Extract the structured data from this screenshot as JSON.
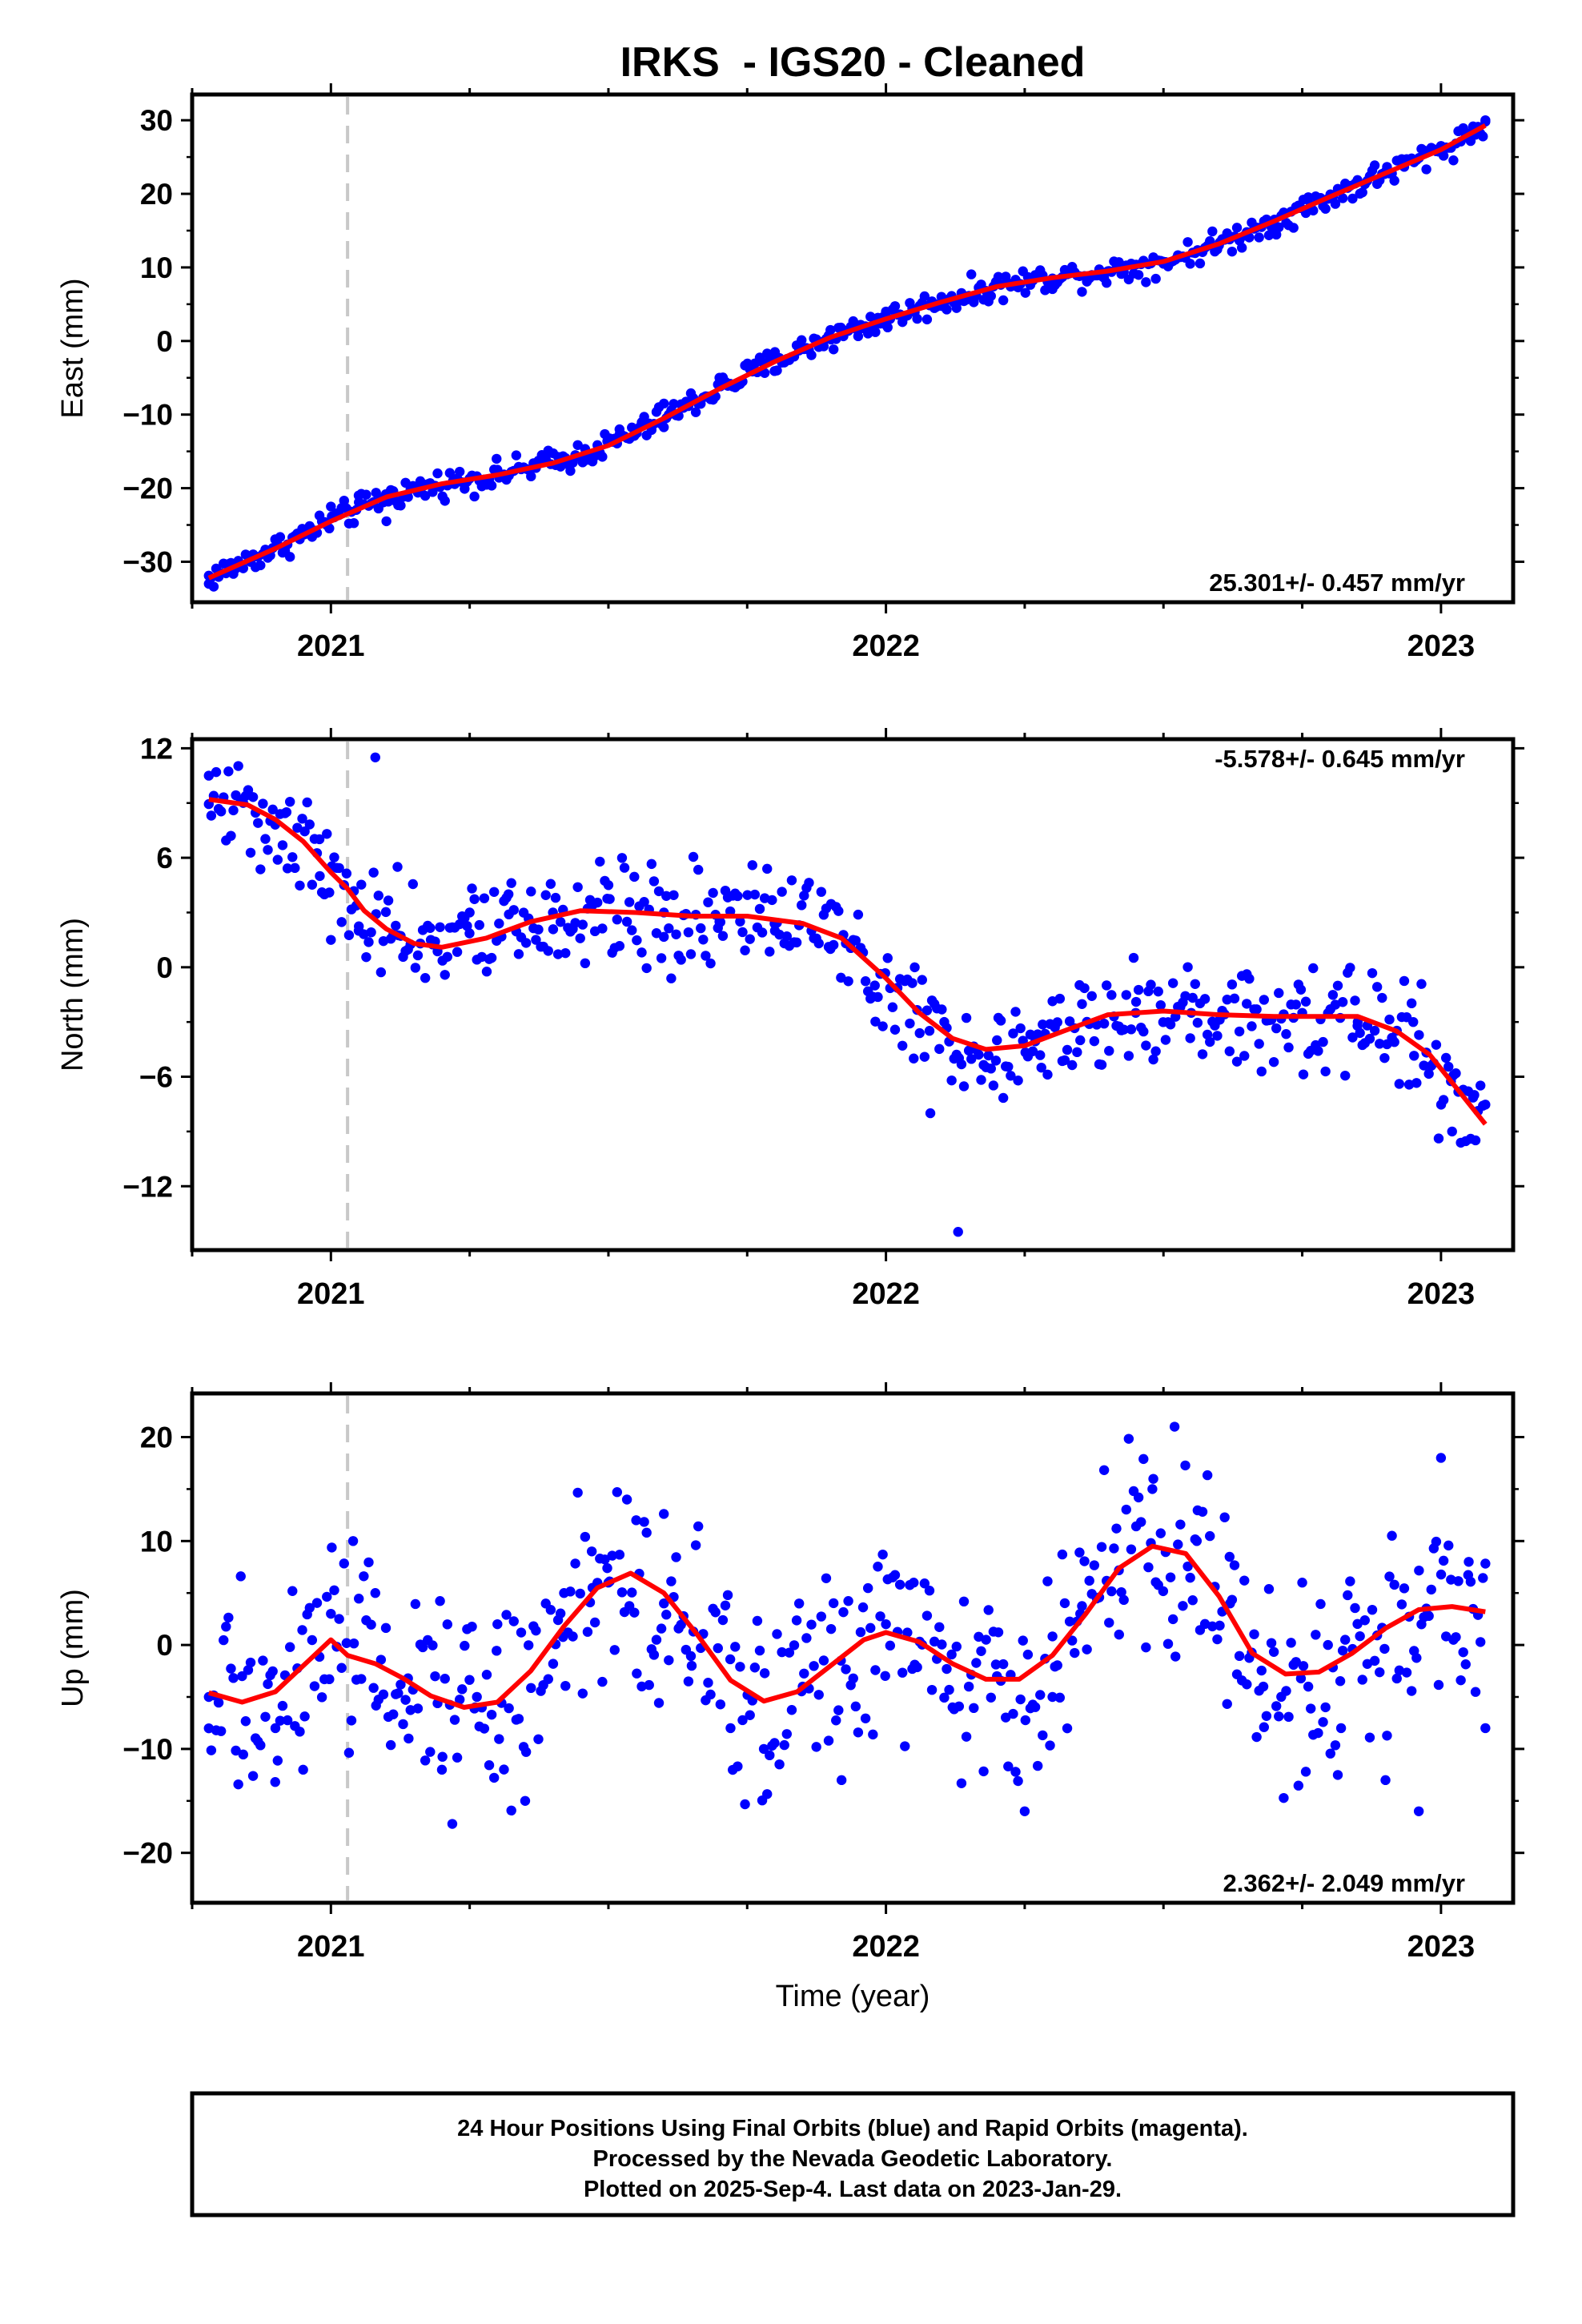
{
  "figure": {
    "title": "IRKS  - IGS20 - Cleaned",
    "xlabel": "Time (year)",
    "footer": [
      "24 Hour Positions Using Final Orbits (blue) and Rapid Orbits (magenta).",
      "Processed by the Nevada Geodetic Laboratory.",
      "Plotted on 2025-Sep-4. Last data on 2023-Jan-29."
    ]
  },
  "colors": {
    "final_orbits": "#0000ff",
    "fit": "#ff0000",
    "discontinuity": "#c8c8c8",
    "frame": "#000000"
  },
  "chart_data": [
    {
      "type": "scatter",
      "component": "east",
      "ylabel": "East (mm)",
      "rate": "25.301+/- 0.457 mm/yr",
      "rate_position": "bottom-right",
      "xlim": [
        2020.75,
        2023.13
      ],
      "ylim": [
        -35.5,
        33.5
      ],
      "yticks": [
        -30,
        -20,
        -10,
        0,
        10,
        20,
        30
      ],
      "yticklabels": [
        "−30",
        "−20",
        "−10",
        "0",
        "10",
        "20",
        "30"
      ],
      "xticks": [
        2021,
        2022,
        2023
      ],
      "xticklabels": [
        "2021",
        "2022",
        "2023"
      ],
      "discontinuity": 2021.03,
      "series": [
        {
          "role": "points",
          "x": [
            2020.78,
            2020.86,
            2020.94,
            2021.0,
            2021.05,
            2021.1,
            2021.16,
            2021.22,
            2021.3,
            2021.38,
            2021.46,
            2021.52,
            2021.6,
            2021.7,
            2021.8,
            2021.9,
            2022.0,
            2022.1,
            2022.2,
            2022.3,
            2022.4,
            2022.5,
            2022.6,
            2022.7,
            2022.8,
            2022.9,
            2023.0,
            2023.08
          ],
          "y": [
            -33,
            -29,
            -26.5,
            -22.5,
            -21,
            -24.5,
            -19.5,
            -19,
            -17.5,
            -15.5,
            -15.5,
            -12,
            -8.5,
            -5,
            -1.5,
            1.5,
            4,
            6,
            8,
            8.5,
            9.5,
            10.5,
            13,
            16.5,
            19.5,
            23,
            26.5,
            30
          ]
        },
        {
          "role": "fit",
          "x": [
            2020.78,
            2020.9,
            2021.0,
            2021.1,
            2021.2,
            2021.3,
            2021.4,
            2021.5,
            2021.6,
            2021.7,
            2021.8,
            2021.9,
            2022.0,
            2022.1,
            2022.2,
            2022.3,
            2022.4,
            2022.5,
            2022.6,
            2022.7,
            2022.8,
            2022.9,
            2023.0,
            2023.08
          ],
          "y": [
            -32.2,
            -28.2,
            -24.5,
            -21.2,
            -19.4,
            -18.2,
            -16.6,
            -14.2,
            -10.5,
            -6.5,
            -2.8,
            0.5,
            3,
            5.3,
            7.4,
            8.6,
            9.5,
            10.8,
            13.2,
            16.3,
            19.6,
            22.8,
            26,
            29.3
          ]
        }
      ]
    },
    {
      "type": "scatter",
      "component": "north",
      "ylabel": "North (mm)",
      "rate": "-5.578+/- 0.645 mm/yr",
      "rate_position": "top-right",
      "xlim": [
        2020.75,
        2023.13
      ],
      "ylim": [
        -15.5,
        12.5
      ],
      "yticks": [
        -12,
        -6,
        0,
        6,
        12
      ],
      "yticklabels": [
        "−12",
        "−6",
        "0",
        "6",
        "12"
      ],
      "xticks": [
        2021,
        2022,
        2023
      ],
      "xticklabels": [
        "2021",
        "2022",
        "2023"
      ],
      "discontinuity": 2021.03,
      "series": [
        {
          "role": "points",
          "x": [
            2020.78,
            2020.85,
            2020.92,
            2020.98,
            2021.0,
            2021.05,
            2021.08,
            2021.12,
            2021.18,
            2021.25,
            2021.32,
            2021.4,
            2021.5,
            2021.6,
            2021.7,
            2021.8,
            2021.9,
            2021.98,
            2022.05,
            2022.08,
            2022.13,
            2022.2,
            2022.28,
            2022.35,
            2022.45,
            2022.55,
            2022.65,
            2022.75,
            2022.85,
            2022.95,
            2023.02,
            2023.06
          ],
          "y": [
            10.5,
            9.5,
            8.5,
            5,
            1.5,
            2,
            11.5,
            5.5,
            1.5,
            3,
            4,
            3,
            4.5,
            3,
            2.5,
            2,
            1,
            -1,
            -5,
            -8,
            -14.5,
            -4,
            -5.5,
            -4,
            -2.5,
            -2.5,
            -2,
            -2.5,
            -3,
            -3,
            -9,
            -7
          ]
        },
        {
          "role": "fit",
          "x": [
            2020.78,
            2020.85,
            2020.9,
            2020.95,
            2021.0,
            2021.03,
            2021.06,
            2021.1,
            2021.15,
            2021.2,
            2021.28,
            2021.36,
            2021.45,
            2021.55,
            2021.65,
            2021.75,
            2021.85,
            2021.92,
            2022.0,
            2022.06,
            2022.12,
            2022.18,
            2022.25,
            2022.32,
            2022.4,
            2022.5,
            2022.6,
            2022.7,
            2022.78,
            2022.85,
            2022.92,
            2022.98,
            2023.03,
            2023.08
          ],
          "y": [
            9.2,
            8.9,
            8.1,
            6.9,
            5.2,
            4.3,
            3.1,
            2.1,
            1.3,
            1.1,
            1.6,
            2.5,
            3.1,
            3,
            2.8,
            2.8,
            2.4,
            1.6,
            -0.6,
            -2.5,
            -3.9,
            -4.5,
            -4.3,
            -3.5,
            -2.6,
            -2.4,
            -2.6,
            -2.7,
            -2.7,
            -2.7,
            -3.5,
            -4.8,
            -6.7,
            -8.6
          ]
        }
      ]
    },
    {
      "type": "scatter",
      "component": "up",
      "ylabel": "Up (mm)",
      "rate": "2.362+/- 2.049 mm/yr",
      "rate_position": "bottom-right",
      "xlim": [
        2020.75,
        2023.13
      ],
      "ylim": [
        -24.8,
        24.2
      ],
      "yticks": [
        -20,
        -10,
        0,
        10,
        20
      ],
      "yticklabels": [
        "−20",
        "−10",
        "0",
        "10",
        "20"
      ],
      "xticks": [
        2021,
        2022,
        2023
      ],
      "xticklabels": [
        "2021",
        "2022",
        "2023"
      ],
      "discontinuity": 2021.03,
      "series": [
        {
          "role": "points",
          "x": [
            2020.78,
            2020.84,
            2020.9,
            2020.95,
            2021.0,
            2021.04,
            2021.08,
            2021.14,
            2021.2,
            2021.26,
            2021.3,
            2021.35,
            2021.42,
            2021.47,
            2021.5,
            2021.55,
            2021.6,
            2021.65,
            2021.72,
            2021.78,
            2021.85,
            2021.92,
            2022.0,
            2022.05,
            2022.12,
            2022.2,
            2022.25,
            2022.3,
            2022.35,
            2022.42,
            2022.48,
            2022.52,
            2022.56,
            2022.62,
            2022.68,
            2022.75,
            2022.82,
            2022.9,
            2022.96,
            2023.0,
            2023.05,
            2023.08
          ],
          "y": [
            -5,
            -3,
            -8,
            -12,
            3,
            10,
            5,
            -9,
            -12,
            -6,
            2,
            -15,
            5,
            9,
            6,
            12,
            4,
            -2,
            -8,
            -10,
            -4,
            -13,
            2,
            6,
            -6,
            -3,
            -16,
            -5,
            3,
            1,
            15,
            21,
            10,
            4,
            -4,
            6,
            -8,
            -13,
            -16,
            18,
            8,
            -8
          ]
        },
        {
          "role": "fit",
          "x": [
            2020.78,
            2020.84,
            2020.9,
            2020.95,
            2021.0,
            2021.03,
            2021.08,
            2021.13,
            2021.18,
            2021.24,
            2021.3,
            2021.36,
            2021.42,
            2021.48,
            2021.54,
            2021.6,
            2021.66,
            2021.72,
            2021.78,
            2021.84,
            2021.9,
            2021.96,
            2022.0,
            2022.06,
            2022.12,
            2022.18,
            2022.24,
            2022.3,
            2022.36,
            2022.42,
            2022.48,
            2022.54,
            2022.6,
            2022.66,
            2022.72,
            2022.78,
            2022.84,
            2022.9,
            2022.96,
            2023.02,
            2023.08
          ],
          "y": [
            -4.6,
            -5.5,
            -4.5,
            -2,
            0.5,
            -1,
            -1.8,
            -3.2,
            -4.9,
            -6,
            -5.5,
            -2.5,
            1.8,
            5.5,
            6.9,
            5,
            1,
            -3.4,
            -5.4,
            -4.5,
            -2,
            0.5,
            1.2,
            0.3,
            -1.8,
            -3.3,
            -3.3,
            -1,
            3,
            7.4,
            9.5,
            8.8,
            4.7,
            -0.8,
            -2.8,
            -2.6,
            -0.8,
            1.6,
            3.4,
            3.7,
            3.2
          ]
        }
      ]
    }
  ]
}
